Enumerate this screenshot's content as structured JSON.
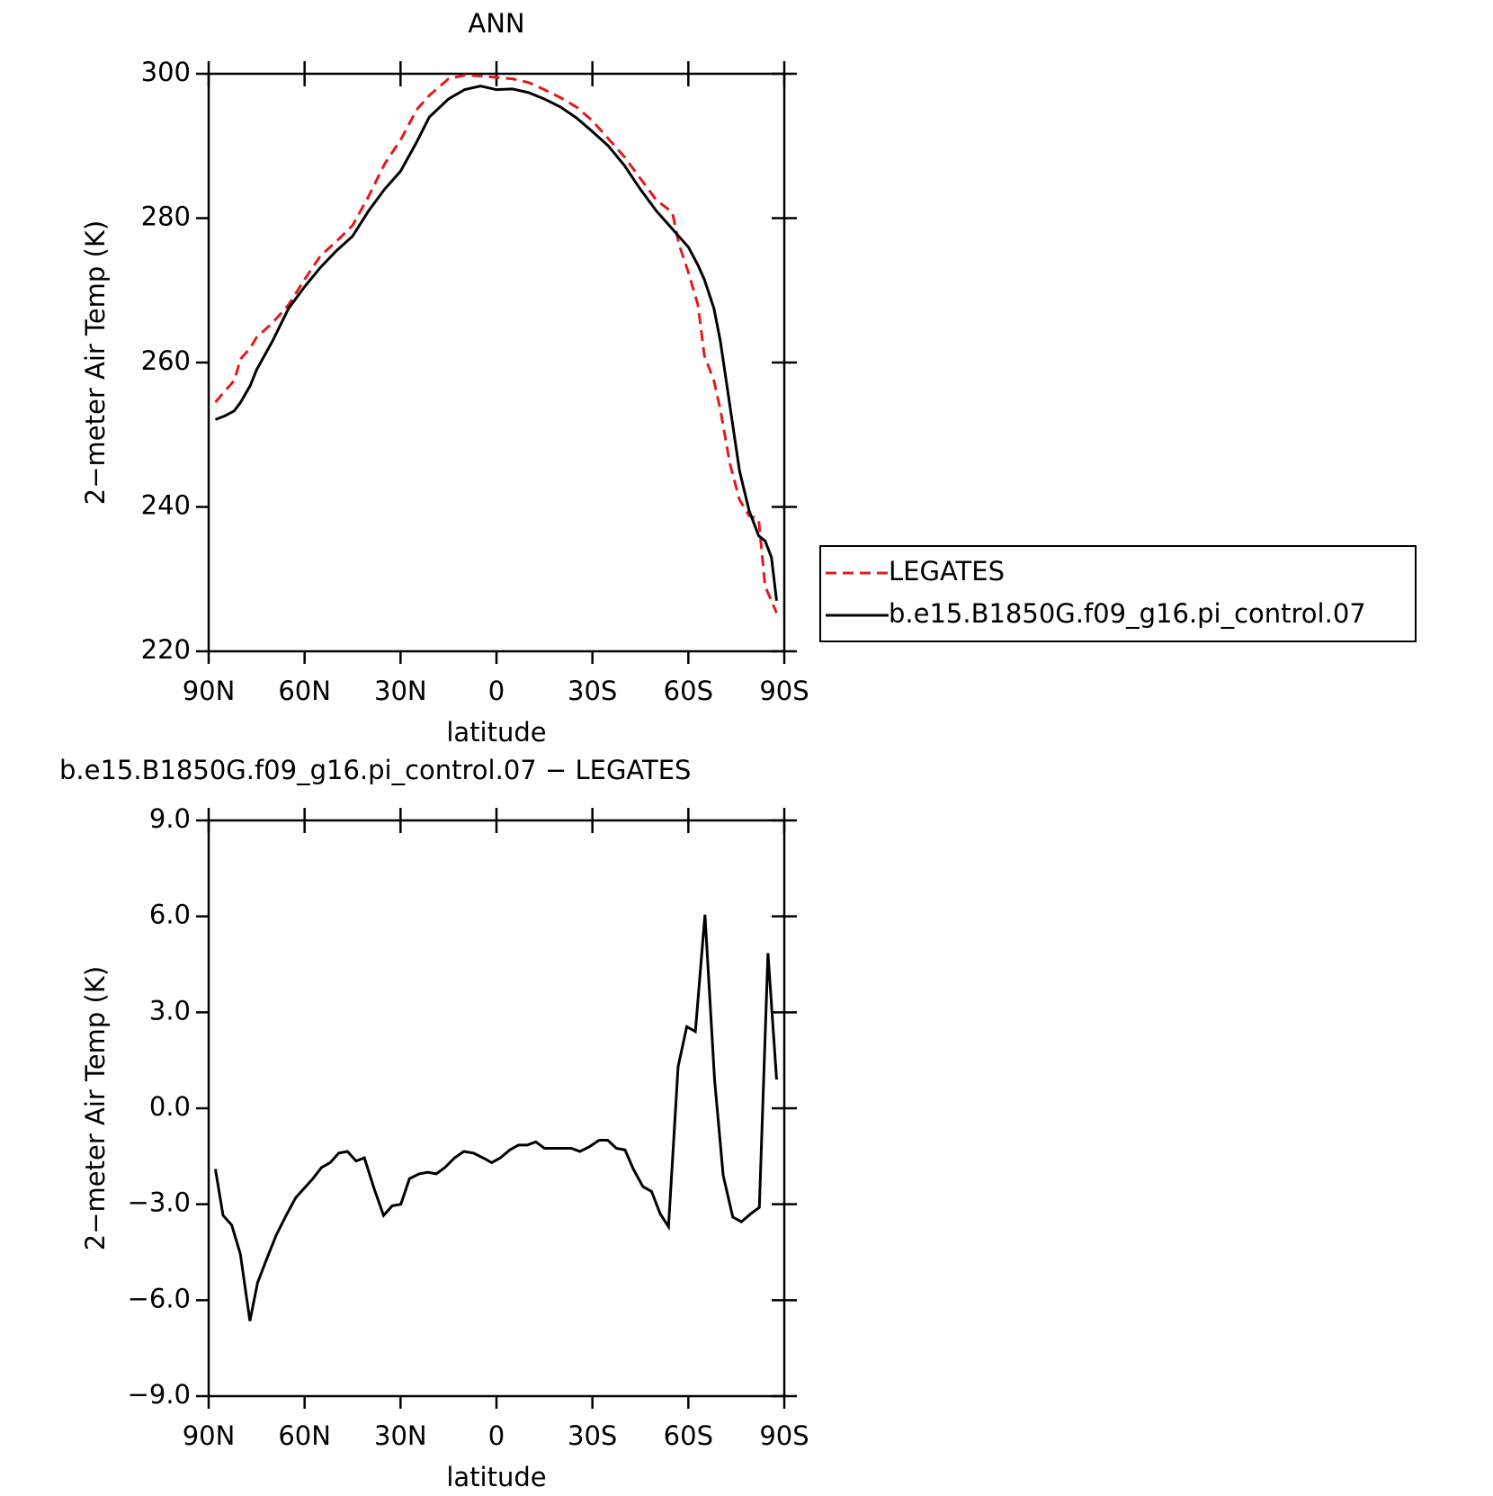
{
  "chart_data": [
    {
      "type": "line",
      "title": "ANN",
      "xlabel": "latitude",
      "ylabel": "2−meter Air Temp (K)",
      "xlim": [
        90,
        -90
      ],
      "ylim": [
        220,
        300
      ],
      "xticks": [
        {
          "value": 90,
          "label": "90N"
        },
        {
          "value": 60,
          "label": "60N"
        },
        {
          "value": 30,
          "label": "30N"
        },
        0,
        {
          "value": -30,
          "label": "30S"
        },
        {
          "value": -60,
          "label": "60S"
        },
        {
          "value": -90,
          "label": "90S"
        }
      ],
      "yticks": [
        220,
        240,
        260,
        280,
        300
      ],
      "legend": "right",
      "x": [
        87.9,
        85,
        82,
        80,
        77,
        75,
        70,
        65,
        60,
        55,
        50,
        45,
        40,
        35,
        32,
        30,
        25,
        21,
        15,
        10,
        5,
        0,
        -5,
        -10,
        -15,
        -20,
        -25,
        -30,
        -35,
        -40,
        -45,
        -50,
        -55,
        -57,
        -60,
        -63,
        -65,
        -68,
        -70,
        -73,
        -76,
        -79,
        -82,
        -84,
        -86,
        -87.6
      ],
      "series": [
        {
          "name": "LEGATES",
          "color": "#e31a1c",
          "dash": true,
          "values": [
            254.5,
            256,
            257.5,
            260.5,
            262,
            263.5,
            265.5,
            268,
            271.5,
            274.8,
            276.8,
            279,
            283,
            287.5,
            289.5,
            290.8,
            295,
            297,
            299.3,
            299.8,
            299.7,
            299.5,
            299.3,
            298.8,
            297.8,
            296.7,
            295.4,
            293.5,
            291,
            288.5,
            285.5,
            282.5,
            280.8,
            276.5,
            272.5,
            268,
            261,
            257.5,
            253.5,
            246,
            241,
            238.8,
            238.3,
            229,
            227,
            225.3
          ]
        },
        {
          "name": "b.e15.B1850G.f09_g16.pi_control.07",
          "color": "#000000",
          "dash": false,
          "values": [
            252.1,
            252.6,
            253.3,
            254.5,
            256.8,
            259,
            263,
            267.5,
            270.5,
            273.2,
            275.5,
            277.5,
            281,
            284,
            285.5,
            286.5,
            290.5,
            294,
            296.5,
            297.8,
            298.3,
            297.8,
            297.9,
            297.4,
            296.5,
            295.4,
            293.9,
            292,
            290,
            287.3,
            284,
            281,
            278.5,
            277.5,
            276,
            273.5,
            271.5,
            267.5,
            263,
            254,
            245,
            239.5,
            236,
            235.3,
            233,
            227
          ]
        }
      ]
    },
    {
      "type": "line",
      "title": "b.e15.B1850G.f09_g16.pi_control.07 − LEGATES",
      "xlabel": "latitude",
      "ylabel": "2−meter Air Temp (K)",
      "xlim": [
        90,
        -90
      ],
      "ylim": [
        -9,
        9
      ],
      "xticks": [
        {
          "value": 90,
          "label": "90N"
        },
        {
          "value": 60,
          "label": "60N"
        },
        {
          "value": 30,
          "label": "30N"
        },
        0,
        {
          "value": -30,
          "label": "30S"
        },
        {
          "value": -60,
          "label": "60S"
        },
        {
          "value": -90,
          "label": "90S"
        }
      ],
      "yticks": [
        {
          "value": -9,
          "label": "−9.0"
        },
        {
          "value": -6,
          "label": "−6.0"
        },
        {
          "value": -3,
          "label": "−3.0"
        },
        {
          "value": 0,
          "label": "0.0"
        },
        {
          "value": 3,
          "label": "3.0"
        },
        {
          "value": 6,
          "label": "6.0"
        },
        {
          "value": 9,
          "label": "9.0"
        }
      ],
      "x": [
        87.9,
        85.5,
        82.8,
        80.1,
        77.1,
        74.7,
        71.8,
        68.8,
        65.5,
        62.8,
        60.1,
        57.4,
        54.7,
        52,
        49.3,
        46.6,
        43.9,
        41.3,
        38.3,
        35.3,
        32.6,
        29.9,
        27.2,
        24.2,
        21.5,
        18.8,
        16.1,
        13.1,
        10.2,
        7.2,
        4.2,
        1.5,
        -1.2,
        -4.2,
        -6.9,
        -9.6,
        -12.3,
        -15,
        -18,
        -20.7,
        -23.4,
        -26.1,
        -29.1,
        -32.1,
        -34.8,
        -37.5,
        -40.2,
        -42.8,
        -45.8,
        -48.5,
        -51.2,
        -53.8,
        -56.8,
        -59.5,
        -62.2,
        -65.2,
        -68.2,
        -70.9,
        -73.9,
        -76.6,
        -79.5,
        -82.2,
        -84.9,
        -87.6
      ],
      "series": [
        {
          "color": "#000000",
          "dash": false,
          "values": [
            -1.9,
            -3.35,
            -3.65,
            -4.55,
            -6.65,
            -5.45,
            -4.7,
            -3.95,
            -3.3,
            -2.8,
            -2.5,
            -2.2,
            -1.85,
            -1.7,
            -1.4,
            -1.35,
            -1.65,
            -1.55,
            -2.5,
            -3.35,
            -3.05,
            -3.0,
            -2.2,
            -2.05,
            -2.0,
            -2.05,
            -1.85,
            -1.55,
            -1.35,
            -1.4,
            -1.55,
            -1.7,
            -1.55,
            -1.3,
            -1.15,
            -1.15,
            -1.05,
            -1.25,
            -1.25,
            -1.25,
            -1.25,
            -1.35,
            -1.2,
            -1.0,
            -1.0,
            -1.25,
            -1.3,
            -1.9,
            -2.45,
            -2.6,
            -3.3,
            -3.7,
            1.3,
            2.55,
            2.4,
            6.05,
            0.9,
            -2.1,
            -3.4,
            -3.55,
            -3.3,
            -3.1,
            4.85,
            0.9
          ]
        }
      ]
    }
  ]
}
